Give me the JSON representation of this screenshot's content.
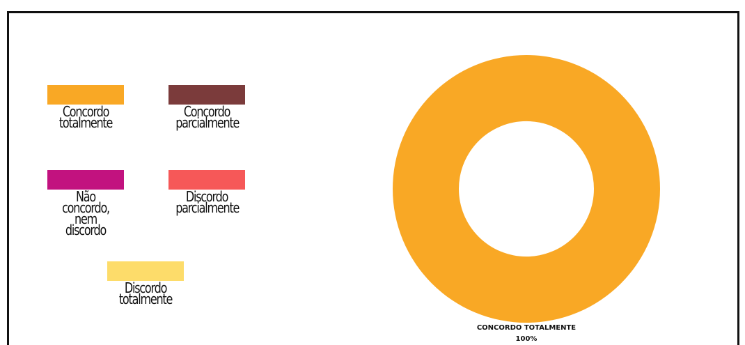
{
  "chart_data": {
    "type": "pie",
    "style": "donut",
    "categories": [
      "Concordo totalmente",
      "Concordo parcialmente",
      "Não concordo, nem discordo",
      "Discordo parcialmente",
      "Discordo totalmente"
    ],
    "values": [
      100,
      0,
      0,
      0,
      0
    ],
    "colors": [
      "#F9A825",
      "#7B3B3B",
      "#C2127F",
      "#F65858",
      "#FDDC6A"
    ],
    "legend": {
      "placement": "left",
      "items": [
        {
          "line1": "Concordo",
          "line2": "totalmente",
          "color": "#F9A825"
        },
        {
          "line1": "Concordo",
          "line2": "parcialmente",
          "color": "#7B3B3B"
        },
        {
          "line1": "Não concordo,",
          "line2": "nem discordo",
          "color": "#C2127F"
        },
        {
          "line1": "Discordo",
          "line2": "parcialmente",
          "color": "#F65858"
        },
        {
          "line1": "Discordo",
          "line2": "totalmente",
          "color": "#FDDC6A"
        }
      ]
    },
    "slice_labels": [
      {
        "name": "CONCORDO TOTALMENTE",
        "percent": "100%"
      }
    ]
  }
}
